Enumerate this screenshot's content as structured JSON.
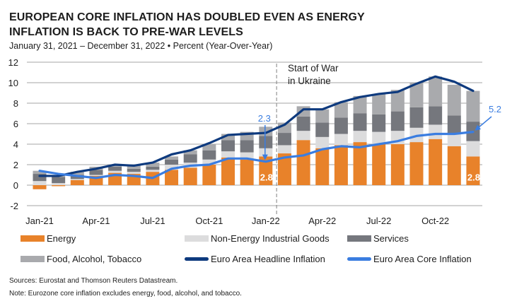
{
  "header": {
    "title": "EUROPEAN CORE INFLATION HAS DOUBLED EVEN AS ENERGY INFLATION IS BACK TO PRE-WAR LEVELS",
    "subtitle": "January 31, 2021 – December 31, 2022 • Percent (Year-Over-Year)"
  },
  "footer": {
    "sources": "Sources: Eurostat and Thomson Reuters Datastream.",
    "note": "Note: Eurozone core inflation excludes energy, food, alcohol, and tobacco."
  },
  "colors": {
    "energy": "#e8822a",
    "non_energy_goods": "#dcdcdd",
    "services": "#75777d",
    "food": "#a9aaad",
    "headline": "#0e3a7e",
    "core": "#3a7de0",
    "grid": "#a6a6a6",
    "annotation": "#3a7de0"
  },
  "chart_data": {
    "type": "bar",
    "stacked": true,
    "title": "EUROPEAN CORE INFLATION HAS DOUBLED EVEN AS ENERGY INFLATION IS BACK TO PRE-WAR LEVELS",
    "subtitle": "January 31, 2021 – December 31, 2022 • Percent (Year-Over-Year)",
    "xlabel": "",
    "ylabel": "Percent (Year-Over-Year)",
    "ylim": [
      -2,
      12
    ],
    "yticks": [
      -2,
      0,
      2,
      4,
      6,
      8,
      10,
      12
    ],
    "grid": true,
    "legend_position": "bottom",
    "categories": [
      "Jan-21",
      "Feb-21",
      "Mar-21",
      "Apr-21",
      "May-21",
      "Jun-21",
      "Jul-21",
      "Aug-21",
      "Sep-21",
      "Oct-21",
      "Nov-21",
      "Dec-21",
      "Jan-22",
      "Feb-22",
      "Mar-22",
      "Apr-22",
      "May-22",
      "Jun-22",
      "Jul-22",
      "Aug-22",
      "Sep-22",
      "Oct-22",
      "Nov-22",
      "Dec-22"
    ],
    "xtick_labels": [
      "Jan-21",
      "Apr-21",
      "Jul-21",
      "Oct-21",
      "Jan-22",
      "Apr-22",
      "Jul-22",
      "Oct-22"
    ],
    "series": [
      {
        "name": "Energy",
        "kind": "bar",
        "color_key": "energy",
        "values": [
          -0.4,
          -0.1,
          0.5,
          0.9,
          1.2,
          1.1,
          1.3,
          1.5,
          1.7,
          2.0,
          2.7,
          2.5,
          2.8,
          3.1,
          4.4,
          3.6,
          3.9,
          4.2,
          4.0,
          4.0,
          4.2,
          4.5,
          3.8,
          2.8
        ]
      },
      {
        "name": "Non-Energy Industrial Goods",
        "kind": "bar",
        "color_key": "non_energy_goods",
        "values": [
          0.4,
          0.2,
          0.1,
          0.1,
          0.2,
          0.2,
          0.2,
          0.5,
          0.5,
          0.5,
          0.6,
          0.7,
          0.8,
          0.8,
          0.9,
          1.1,
          1.1,
          1.1,
          1.2,
          1.3,
          1.4,
          1.4,
          1.3,
          1.5
        ]
      },
      {
        "name": "Services",
        "kind": "bar",
        "color_key": "services",
        "values": [
          0.7,
          0.6,
          0.4,
          0.5,
          0.4,
          0.3,
          0.3,
          0.5,
          0.8,
          0.9,
          1.1,
          1.2,
          1.2,
          1.2,
          1.4,
          1.4,
          1.6,
          1.7,
          1.7,
          1.9,
          2.0,
          1.8,
          1.7,
          1.9
        ]
      },
      {
        "name": "Food, Alcohol, Tobacco",
        "kind": "bar",
        "color_key": "food",
        "values": [
          0.3,
          0.2,
          0.3,
          0.3,
          0.2,
          0.3,
          0.4,
          0.3,
          0.4,
          0.6,
          0.6,
          0.8,
          0.9,
          1.0,
          1.0,
          1.3,
          1.5,
          1.7,
          2.0,
          2.1,
          2.4,
          2.9,
          3.0,
          3.0
        ]
      },
      {
        "name": "Euro Area Headline Inflation",
        "kind": "line",
        "color_key": "headline",
        "values": [
          0.9,
          0.9,
          1.3,
          1.6,
          2.0,
          1.9,
          2.2,
          3.0,
          3.4,
          4.1,
          4.9,
          5.0,
          5.1,
          5.9,
          7.4,
          7.4,
          8.1,
          8.6,
          8.9,
          9.1,
          9.9,
          10.6,
          10.1,
          9.2
        ]
      },
      {
        "name": "Euro Area Core Inflation",
        "kind": "line",
        "color_key": "core",
        "values": [
          1.4,
          1.1,
          0.9,
          0.7,
          1.0,
          0.9,
          0.7,
          1.6,
          1.9,
          2.0,
          2.6,
          2.6,
          2.3,
          2.7,
          2.9,
          3.5,
          3.8,
          3.7,
          4.0,
          4.3,
          4.8,
          5.0,
          5.0,
          5.2
        ]
      }
    ],
    "annotations": [
      {
        "text": "Start of War in Ukraine",
        "lines": [
          "Start of War",
          "in Ukraine"
        ],
        "at_category": "Feb-22",
        "type": "vertical-dashed-line"
      },
      {
        "text": "2.3",
        "at_category": "Jan-22",
        "series": "Euro Area Core Inflation",
        "type": "arrow-label"
      },
      {
        "text": "2.8",
        "at_category": "Jan-22",
        "series": "Energy",
        "type": "bar-label"
      },
      {
        "text": "5.2",
        "at_category": "Dec-22",
        "series": "Euro Area Core Inflation",
        "type": "arrow-label"
      },
      {
        "text": "2.8",
        "at_category": "Dec-22",
        "series": "Energy",
        "type": "bar-label"
      }
    ]
  },
  "legend": {
    "items": [
      {
        "label": "Energy",
        "kind": "box",
        "color_key": "energy"
      },
      {
        "label": "Non-Energy Industrial Goods",
        "kind": "box",
        "color_key": "non_energy_goods"
      },
      {
        "label": "Services",
        "kind": "box",
        "color_key": "services"
      },
      {
        "label": "Food, Alcohol, Tobacco",
        "kind": "box",
        "color_key": "food"
      },
      {
        "label": "Euro Area Headline Inflation",
        "kind": "line",
        "color_key": "headline"
      },
      {
        "label": "Euro Area Core Inflation",
        "kind": "line",
        "color_key": "core"
      }
    ]
  }
}
